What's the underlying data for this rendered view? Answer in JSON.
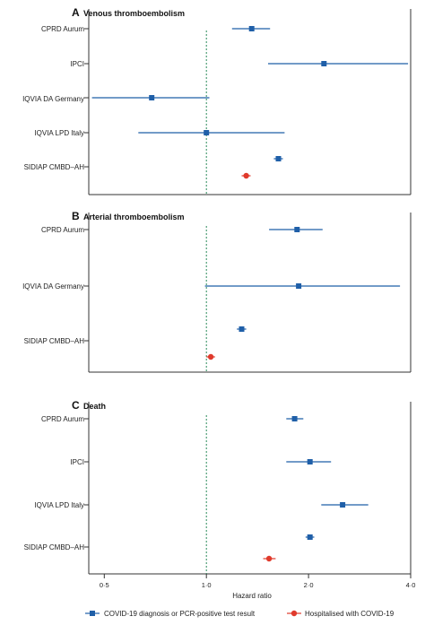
{
  "chart_data": {
    "type": "forest",
    "xlabel": "Hazard ratio",
    "x_scale": "log",
    "xlim": [
      0.45,
      4.0
    ],
    "reference_line": 1.0,
    "ticks": [
      {
        "value": 0.5,
        "label": "0·5"
      },
      {
        "value": 1.0,
        "label": "1·0"
      },
      {
        "value": 2.0,
        "label": "2·0"
      },
      {
        "value": 4.0,
        "label": "4·0"
      }
    ],
    "legend": [
      {
        "key": "covid",
        "label": "COVID-19 diagnosis or PCR-positive test result",
        "color": "#1f5fa8",
        "marker": "square"
      },
      {
        "key": "hosp",
        "label": "Hospitalised with COVID-19",
        "color": "#e03a2c",
        "marker": "circle"
      }
    ],
    "panels": [
      {
        "letter": "A",
        "title": "Venous thromboembolism",
        "rows": [
          {
            "label": "CPRD Aurum",
            "series": [
              {
                "key": "covid",
                "hr": 1.36,
                "lo": 1.19,
                "hi": 1.54
              }
            ]
          },
          {
            "label": "IPCI",
            "series": [
              {
                "key": "covid",
                "hr": 2.22,
                "lo": 1.52,
                "hi": 3.93
              }
            ]
          },
          {
            "label": "IQVIA DA Germany",
            "series": [
              {
                "key": "covid",
                "hr": 0.69,
                "lo": 0.46,
                "hi": 1.02
              }
            ]
          },
          {
            "label": "IQVIA LPD Italy",
            "series": [
              {
                "key": "covid",
                "hr": 1.0,
                "lo": 0.63,
                "hi": 1.7
              }
            ]
          },
          {
            "label": "SIDIAP CMBD–AH",
            "series": [
              {
                "key": "covid",
                "hr": 1.63,
                "lo": 1.58,
                "hi": 1.68
              },
              {
                "key": "hosp",
                "hr": 1.31,
                "lo": 1.27,
                "hi": 1.35
              }
            ]
          }
        ]
      },
      {
        "letter": "B",
        "title": "Arterial thromboembolism",
        "rows": [
          {
            "label": "CPRD Aurum",
            "series": [
              {
                "key": "covid",
                "hr": 1.85,
                "lo": 1.53,
                "hi": 2.2
              }
            ]
          },
          {
            "label": "IQVIA DA Germany",
            "series": [
              {
                "key": "covid",
                "hr": 1.87,
                "lo": 0.99,
                "hi": 3.72
              }
            ]
          },
          {
            "label": "SIDIAP CMBD–AH",
            "series": [
              {
                "key": "covid",
                "hr": 1.27,
                "lo": 1.23,
                "hi": 1.31
              },
              {
                "key": "hosp",
                "hr": 1.03,
                "lo": 1.0,
                "hi": 1.06
              }
            ]
          }
        ]
      },
      {
        "letter": "C",
        "title": "Death",
        "rows": [
          {
            "label": "CPRD Aurum",
            "series": [
              {
                "key": "covid",
                "hr": 1.82,
                "lo": 1.72,
                "hi": 1.93
              }
            ]
          },
          {
            "label": "IPCI",
            "series": [
              {
                "key": "covid",
                "hr": 2.02,
                "lo": 1.72,
                "hi": 2.33
              }
            ]
          },
          {
            "label": "IQVIA LPD Italy",
            "series": [
              {
                "key": "covid",
                "hr": 2.52,
                "lo": 2.18,
                "hi": 3.0
              }
            ]
          },
          {
            "label": "SIDIAP CMBD–AH",
            "series": [
              {
                "key": "covid",
                "hr": 2.02,
                "lo": 1.96,
                "hi": 2.08
              },
              {
                "key": "hosp",
                "hr": 1.53,
                "lo": 1.47,
                "hi": 1.6
              }
            ]
          }
        ]
      }
    ]
  }
}
